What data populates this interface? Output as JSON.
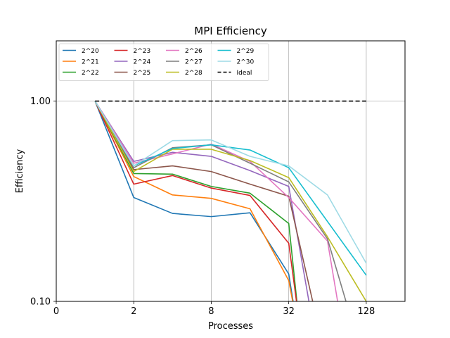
{
  "chart_data": {
    "type": "line",
    "title": "MPI Efficiency",
    "xlabel": "Processes",
    "ylabel": "Efficiency",
    "x_scale": "log2",
    "y_scale": "log10",
    "xlim": [
      0.5,
      256
    ],
    "ylim": [
      0.1,
      2.0
    ],
    "xtick_values": [
      0.5,
      2,
      8,
      32,
      128
    ],
    "xtick_labels": [
      "0",
      "2",
      "8",
      "32",
      "128"
    ],
    "ytick_values": [
      0.1,
      1.0
    ],
    "ytick_labels": [
      "0.10",
      "1.00"
    ],
    "grid": true,
    "legend_position": "upper-left",
    "legend_columns": 4,
    "series": [
      {
        "name": "2^20",
        "color": "#1f77b4",
        "style": "solid",
        "x": [
          1,
          2,
          4,
          8,
          16,
          32,
          36
        ],
        "y": [
          1.0,
          0.33,
          0.275,
          0.265,
          0.277,
          0.137,
          0.085
        ]
      },
      {
        "name": "2^21",
        "color": "#ff7f0e",
        "style": "solid",
        "x": [
          1,
          2,
          4,
          8,
          16,
          32,
          36
        ],
        "y": [
          1.0,
          0.42,
          0.34,
          0.327,
          0.29,
          0.127,
          0.085
        ]
      },
      {
        "name": "2^22",
        "color": "#2ca02c",
        "style": "solid",
        "x": [
          1,
          2,
          4,
          8,
          16,
          32,
          38
        ],
        "y": [
          1.0,
          0.435,
          0.432,
          0.375,
          0.347,
          0.245,
          0.085
        ]
      },
      {
        "name": "2^23",
        "color": "#d62728",
        "style": "solid",
        "x": [
          1,
          2,
          4,
          8,
          16,
          32,
          38
        ],
        "y": [
          1.0,
          0.385,
          0.425,
          0.368,
          0.338,
          0.195,
          0.085
        ]
      },
      {
        "name": "2^24",
        "color": "#9467bd",
        "style": "solid",
        "x": [
          1,
          2,
          4,
          8,
          16,
          32,
          48
        ],
        "y": [
          1.0,
          0.5,
          0.555,
          0.53,
          0.45,
          0.375,
          0.085
        ]
      },
      {
        "name": "2^25",
        "color": "#8c564b",
        "style": "solid",
        "x": [
          1,
          2,
          4,
          8,
          16,
          32,
          52
        ],
        "y": [
          1.0,
          0.455,
          0.475,
          0.445,
          0.385,
          0.335,
          0.085
        ]
      },
      {
        "name": "2^26",
        "color": "#e377c2",
        "style": "solid",
        "x": [
          1,
          2,
          4,
          8,
          16,
          32,
          64,
          80
        ],
        "y": [
          1.0,
          0.49,
          0.545,
          0.61,
          0.5,
          0.33,
          0.2,
          0.085
        ]
      },
      {
        "name": "2^27",
        "color": "#7f7f7f",
        "style": "solid",
        "x": [
          1,
          2,
          4,
          8,
          16,
          32,
          64,
          96
        ],
        "y": [
          1.0,
          0.465,
          0.585,
          0.605,
          0.49,
          0.395,
          0.205,
          0.085
        ]
      },
      {
        "name": "2^28",
        "color": "#bcbd22",
        "style": "solid",
        "x": [
          1,
          2,
          4,
          8,
          16,
          32,
          64,
          128
        ],
        "y": [
          1.0,
          0.445,
          0.575,
          0.575,
          0.505,
          0.415,
          0.21,
          0.1
        ]
      },
      {
        "name": "2^29",
        "color": "#17becf",
        "style": "solid",
        "x": [
          1,
          2,
          4,
          8,
          16,
          32,
          128
        ],
        "y": [
          1.0,
          0.475,
          0.58,
          0.605,
          0.57,
          0.465,
          0.135
        ]
      },
      {
        "name": "2^30",
        "color": "#9edae5",
        "style": "solid",
        "x": [
          1,
          2,
          4,
          8,
          16,
          32,
          64,
          128
        ],
        "y": [
          1.0,
          0.475,
          0.635,
          0.64,
          0.53,
          0.475,
          0.34,
          0.155
        ]
      },
      {
        "name": "Ideal",
        "color": "#000000",
        "style": "dashed",
        "x": [
          1,
          128
        ],
        "y": [
          1.0,
          1.0
        ]
      }
    ]
  }
}
